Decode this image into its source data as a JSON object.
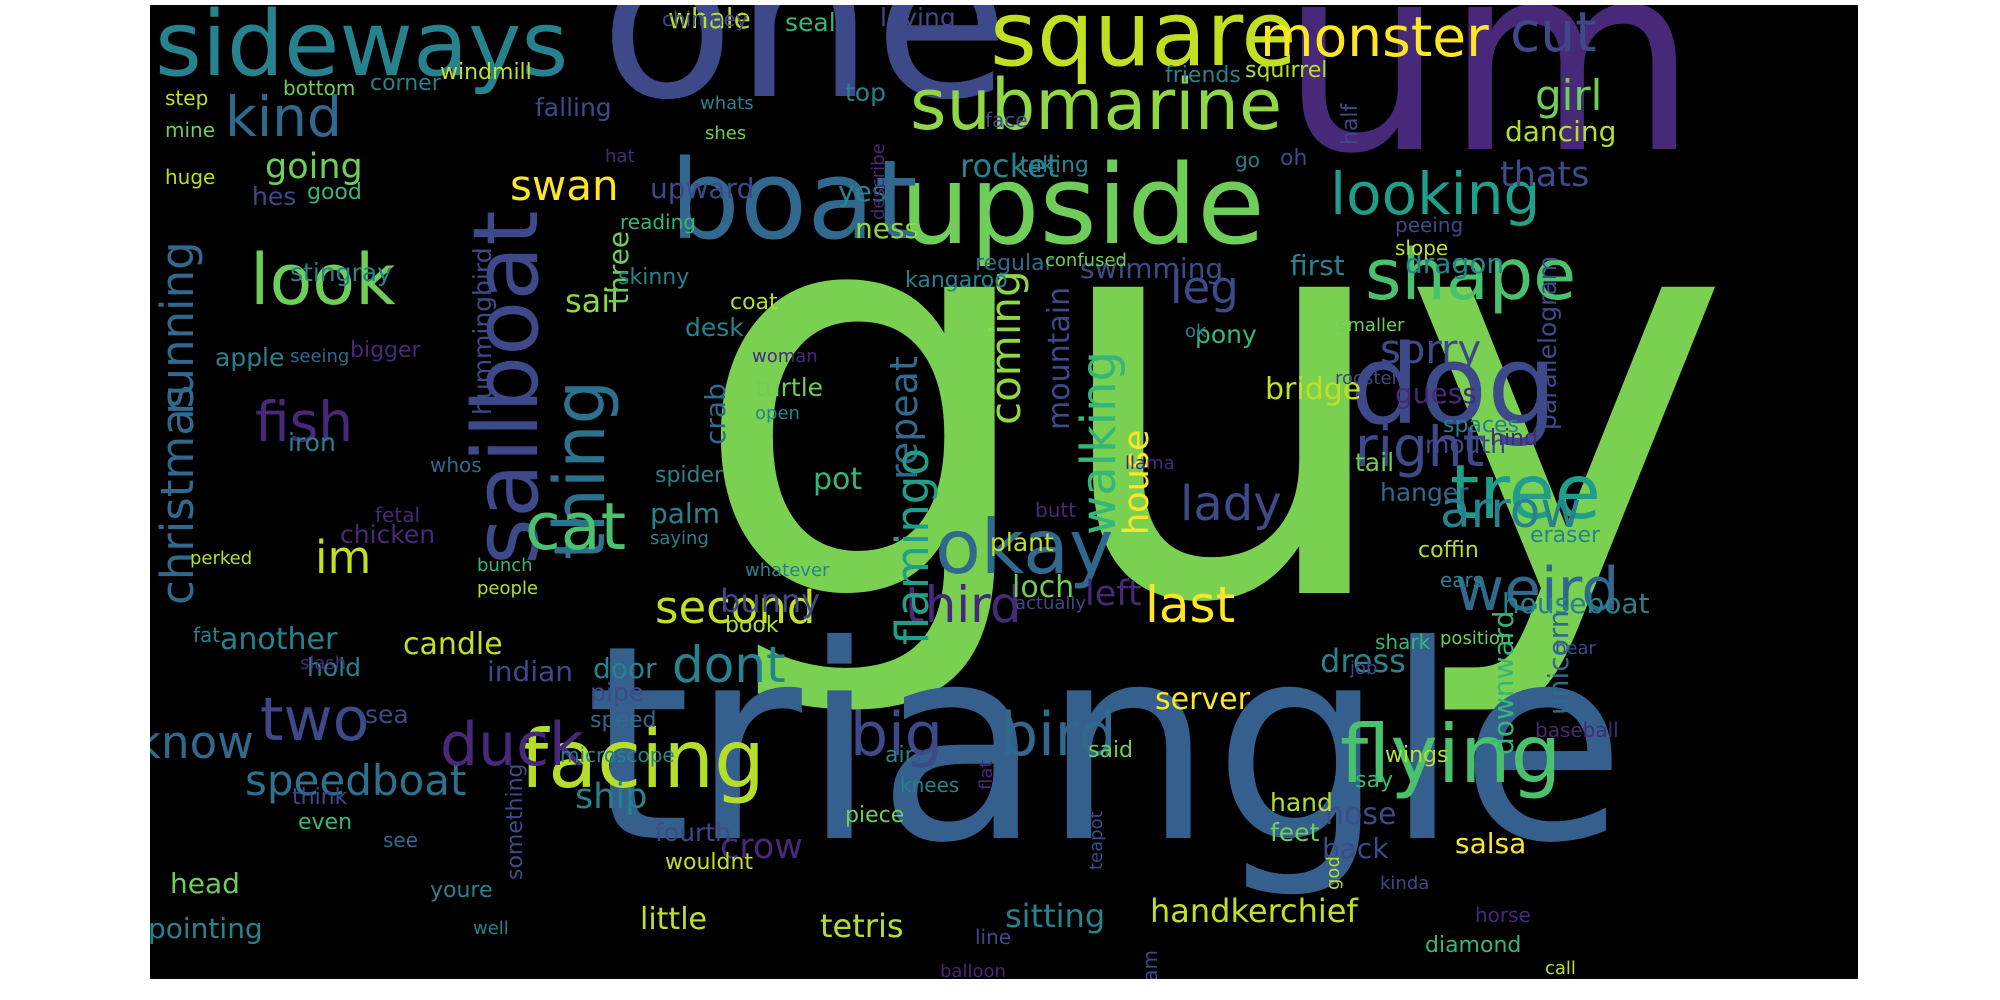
{
  "palette": [
    "#440154",
    "#482878",
    "#3e4989",
    "#31688e",
    "#26828e",
    "#1f9e89",
    "#35b779",
    "#6ece58",
    "#b5de2b",
    "#fde725"
  ],
  "words": [
    {
      "t": "guy",
      "c": "#7ad151"
    },
    {
      "t": "triangle",
      "c": "#355f8d"
    },
    {
      "t": "um",
      "c": "#482878"
    },
    {
      "t": "one",
      "c": "#3e4989"
    },
    {
      "t": "upside",
      "c": "#6ece58"
    },
    {
      "t": "square",
      "c": "#c2df23"
    },
    {
      "t": "boat",
      "c": "#31688e"
    },
    {
      "t": "sideways",
      "c": "#26828e"
    },
    {
      "t": "submarine",
      "c": "#8fd744"
    },
    {
      "t": "dog",
      "c": "#3e4989"
    },
    {
      "t": "sailboat",
      "c": "#3e4989"
    },
    {
      "t": "thing",
      "c": "#2c728e"
    },
    {
      "t": "monster",
      "c": "#fde725"
    },
    {
      "t": "facing",
      "c": "#b5de2b"
    },
    {
      "t": "flying",
      "c": "#4ac16d"
    },
    {
      "t": "look",
      "c": "#6ece58"
    },
    {
      "t": "okay",
      "c": "#31688e"
    },
    {
      "t": "shape",
      "c": "#4ac16d"
    },
    {
      "t": "looking",
      "c": "#1f9e89"
    },
    {
      "t": "tree",
      "c": "#1f9e89"
    },
    {
      "t": "cat",
      "c": "#4ac16d"
    },
    {
      "t": "kind",
      "c": "#31688e"
    },
    {
      "t": "cut",
      "c": "#3e4989"
    },
    {
      "t": "bird",
      "c": "#31688e"
    },
    {
      "t": "weird",
      "c": "#31688e"
    },
    {
      "t": "big",
      "c": "#3e4989"
    },
    {
      "t": "two",
      "c": "#3e4989"
    },
    {
      "t": "duck",
      "c": "#482878"
    },
    {
      "t": "know",
      "c": "#31688e"
    },
    {
      "t": "speedboat",
      "c": "#2c728e"
    },
    {
      "t": "second",
      "c": "#c2df23"
    },
    {
      "t": "dont",
      "c": "#26828e"
    },
    {
      "t": "third",
      "c": "#482878"
    },
    {
      "t": "last",
      "c": "#fde725"
    },
    {
      "t": "fish",
      "c": "#482878"
    },
    {
      "t": "im",
      "c": "#c2df23"
    },
    {
      "t": "right",
      "c": "#3e4989"
    },
    {
      "t": "arrow",
      "c": "#26828e"
    },
    {
      "t": "lady",
      "c": "#3e4989"
    },
    {
      "t": "girl",
      "c": "#6ece58"
    },
    {
      "t": "swan",
      "c": "#fde725"
    },
    {
      "t": "christmas",
      "c": "#31688e"
    },
    {
      "t": "running",
      "c": "#31688e"
    },
    {
      "t": "walking",
      "c": "#35b779"
    },
    {
      "t": "coming",
      "c": "#8fd744"
    },
    {
      "t": "repeat",
      "c": "#31688e"
    },
    {
      "t": "flamingo",
      "c": "#1f9e89"
    },
    {
      "t": "house",
      "c": "#fde725"
    },
    {
      "t": "leg",
      "c": "#3e4989"
    },
    {
      "t": "sorry",
      "c": "#3e4989"
    },
    {
      "t": "going",
      "c": "#6ece58"
    },
    {
      "t": "rocket",
      "c": "#26828e"
    },
    {
      "t": "thats",
      "c": "#3e4989"
    },
    {
      "t": "dancing",
      "c": "#b5de2b"
    },
    {
      "t": "sail",
      "c": "#8fd744"
    },
    {
      "t": "upward",
      "c": "#3e4989"
    },
    {
      "t": "yes",
      "c": "#26828e"
    },
    {
      "t": "ness",
      "c": "#8fd744"
    },
    {
      "t": "whale",
      "c": "#b5de2b"
    },
    {
      "t": "seal",
      "c": "#35b779"
    },
    {
      "t": "laying",
      "c": "#3e4989"
    },
    {
      "t": "top",
      "c": "#26828e"
    },
    {
      "t": "first",
      "c": "#26828e"
    },
    {
      "t": "dragon",
      "c": "#26828e"
    },
    {
      "t": "swimming",
      "c": "#3e4989"
    },
    {
      "t": "bridge",
      "c": "#c2df23"
    },
    {
      "t": "guess",
      "c": "#482878"
    },
    {
      "t": "mouth",
      "c": "#3e4989"
    },
    {
      "t": "pony",
      "c": "#35b779"
    },
    {
      "t": "three",
      "c": "#6ece58"
    },
    {
      "t": "desk",
      "c": "#26828e"
    },
    {
      "t": "coat",
      "c": "#b5de2b"
    },
    {
      "t": "skinny",
      "c": "#26828e"
    },
    {
      "t": "kangaroo",
      "c": "#26828e"
    },
    {
      "t": "regular",
      "c": "#31688e"
    },
    {
      "t": "confused",
      "c": "#6ece58"
    },
    {
      "t": "stingray",
      "c": "#26828e"
    },
    {
      "t": "hes",
      "c": "#3e4989"
    },
    {
      "t": "good",
      "c": "#35b779"
    },
    {
      "t": "apple",
      "c": "#26828e"
    },
    {
      "t": "bigger",
      "c": "#482878"
    },
    {
      "t": "seeing",
      "c": "#31688e"
    },
    {
      "t": "hummingbird",
      "c": "#3e4989"
    },
    {
      "t": "crab",
      "c": "#31688e"
    },
    {
      "t": "pot",
      "c": "#35b779"
    },
    {
      "t": "palm",
      "c": "#26828e"
    },
    {
      "t": "saying",
      "c": "#26828e"
    },
    {
      "t": "spider",
      "c": "#26828e"
    },
    {
      "t": "turtle",
      "c": "#6ece58"
    },
    {
      "t": "open",
      "c": "#26828e"
    },
    {
      "t": "woman",
      "c": "#482878"
    },
    {
      "t": "bunny",
      "c": "#3e4989"
    },
    {
      "t": "book",
      "c": "#b5de2b"
    },
    {
      "t": "loch",
      "c": "#6ece58"
    },
    {
      "t": "left",
      "c": "#482878"
    },
    {
      "t": "plant",
      "c": "#c2df23"
    },
    {
      "t": "butt",
      "c": "#482878"
    },
    {
      "t": "mountain",
      "c": "#3e4989"
    },
    {
      "t": "server",
      "c": "#fde725"
    },
    {
      "t": "dress",
      "c": "#26828e"
    },
    {
      "t": "houseboat",
      "c": "#26828e"
    },
    {
      "t": "tail",
      "c": "#6ece58"
    },
    {
      "t": "hanger",
      "c": "#31688e"
    },
    {
      "t": "spaces",
      "c": "#26828e"
    },
    {
      "t": "hind",
      "c": "#482878"
    },
    {
      "t": "parallelogram",
      "c": "#3e4989"
    },
    {
      "t": "eraser",
      "c": "#26828e"
    },
    {
      "t": "coffin",
      "c": "#b5de2b"
    },
    {
      "t": "ears",
      "c": "#26828e"
    },
    {
      "t": "shark",
      "c": "#35b779"
    },
    {
      "t": "job",
      "c": "#3e4989"
    },
    {
      "t": "position",
      "c": "#6ece58"
    },
    {
      "t": "baseball",
      "c": "#482878"
    },
    {
      "t": "bear",
      "c": "#3e4989"
    },
    {
      "t": "unicorn",
      "c": "#31688e"
    },
    {
      "t": "downward",
      "c": "#35b779"
    },
    {
      "t": "wings",
      "c": "#b5de2b"
    },
    {
      "t": "say",
      "c": "#35b779"
    },
    {
      "t": "nose",
      "c": "#3e4989"
    },
    {
      "t": "back",
      "c": "#3e4989"
    },
    {
      "t": "salsa",
      "c": "#fde725"
    },
    {
      "t": "hand",
      "c": "#b5de2b"
    },
    {
      "t": "feet",
      "c": "#6ece58"
    },
    {
      "t": "handkerchief",
      "c": "#c2df23"
    },
    {
      "t": "diamond",
      "c": "#35b779"
    },
    {
      "t": "call",
      "c": "#c2df23"
    },
    {
      "t": "sitting",
      "c": "#26828e"
    },
    {
      "t": "tetris",
      "c": "#b5de2b"
    },
    {
      "t": "little",
      "c": "#c2df23"
    },
    {
      "t": "ship",
      "c": "#26828e"
    },
    {
      "t": "crow",
      "c": "#482878"
    },
    {
      "t": "fourth",
      "c": "#3e4989"
    },
    {
      "t": "wouldnt",
      "c": "#c2df23"
    },
    {
      "t": "piece",
      "c": "#6ece58"
    },
    {
      "t": "air",
      "c": "#26828e"
    },
    {
      "t": "knees",
      "c": "#26828e"
    },
    {
      "t": "flat",
      "c": "#482878"
    },
    {
      "t": "teapot",
      "c": "#3e4989"
    },
    {
      "t": "said",
      "c": "#6ece58"
    },
    {
      "t": "microscope",
      "c": "#26828e"
    },
    {
      "t": "speed",
      "c": "#31688e"
    },
    {
      "t": "pipe",
      "c": "#3e4989"
    },
    {
      "t": "door",
      "c": "#26828e"
    },
    {
      "t": "sea",
      "c": "#3e4989"
    },
    {
      "t": "hold",
      "c": "#26828e"
    },
    {
      "t": "candle",
      "c": "#c2df23"
    },
    {
      "t": "another",
      "c": "#26828e"
    },
    {
      "t": "indian",
      "c": "#3e4989"
    },
    {
      "t": "fat",
      "c": "#26828e"
    },
    {
      "t": "slash",
      "c": "#482878"
    },
    {
      "t": "head",
      "c": "#6ece58"
    },
    {
      "t": "pointing",
      "c": "#26828e"
    },
    {
      "t": "youre",
      "c": "#26828e"
    },
    {
      "t": "see",
      "c": "#31688e"
    },
    {
      "t": "well",
      "c": "#26828e"
    },
    {
      "t": "think",
      "c": "#3e4989"
    },
    {
      "t": "even",
      "c": "#35b779"
    },
    {
      "t": "something",
      "c": "#3e4989"
    },
    {
      "t": "people",
      "c": "#b5de2b"
    },
    {
      "t": "bunch",
      "c": "#35b779"
    },
    {
      "t": "chicken",
      "c": "#482878"
    },
    {
      "t": "fetal",
      "c": "#482878"
    },
    {
      "t": "iron",
      "c": "#26828e"
    },
    {
      "t": "perked",
      "c": "#b5de2b"
    },
    {
      "t": "whos",
      "c": "#31688e"
    },
    {
      "t": "chimney",
      "c": "#3e4989"
    },
    {
      "t": "step",
      "c": "#c2df23"
    },
    {
      "t": "bottom",
      "c": "#6ece58"
    },
    {
      "t": "corner",
      "c": "#26828e"
    },
    {
      "t": "windmill",
      "c": "#c2df23"
    },
    {
      "t": "mine",
      "c": "#6ece58"
    },
    {
      "t": "huge",
      "c": "#b5de2b"
    },
    {
      "t": "falling",
      "c": "#3e4989"
    },
    {
      "t": "hat",
      "c": "#482878"
    },
    {
      "t": "whats",
      "c": "#26828e"
    },
    {
      "t": "shes",
      "c": "#6ece58"
    },
    {
      "t": "reading",
      "c": "#35b779"
    },
    {
      "t": "face",
      "c": "#3e4989"
    },
    {
      "t": "describe",
      "c": "#482878"
    },
    {
      "t": "friends",
      "c": "#26828e"
    },
    {
      "t": "squirrel",
      "c": "#b5de2b"
    },
    {
      "t": "taking",
      "c": "#26828e"
    },
    {
      "t": "go",
      "c": "#26828e"
    },
    {
      "t": "oh",
      "c": "#3e4989"
    },
    {
      "t": "half",
      "c": "#3e4989"
    },
    {
      "t": "peeing",
      "c": "#3e4989"
    },
    {
      "t": "slope",
      "c": "#c2df23"
    },
    {
      "t": "smaller",
      "c": "#6ece58"
    },
    {
      "t": "ok",
      "c": "#26828e"
    },
    {
      "t": "rooster",
      "c": "#3e4989"
    },
    {
      "t": "llama",
      "c": "#482878"
    },
    {
      "t": "whatever",
      "c": "#26828e"
    },
    {
      "t": "actually",
      "c": "#3e4989"
    },
    {
      "t": "line",
      "c": "#3e4989"
    },
    {
      "t": "ram",
      "c": "#3e4989"
    },
    {
      "t": "balloon",
      "c": "#482878"
    },
    {
      "t": "god",
      "c": "#b5de2b"
    },
    {
      "t": "kinda",
      "c": "#3e4989"
    },
    {
      "t": "horse",
      "c": "#482878"
    }
  ]
}
